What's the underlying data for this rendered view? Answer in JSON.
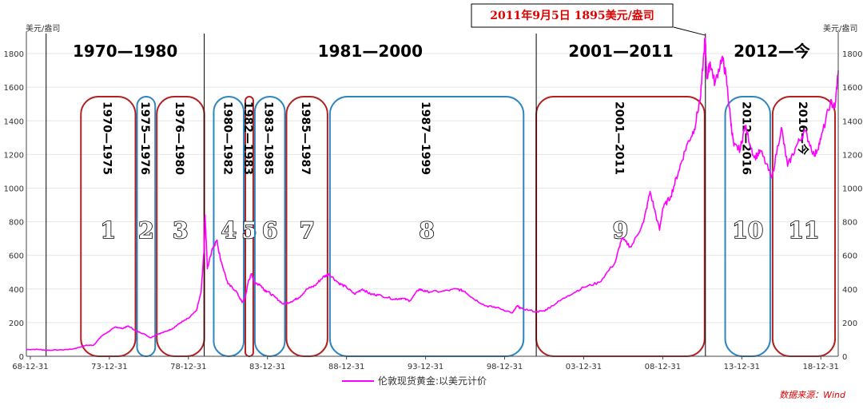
{
  "chart_data": {
    "type": "line",
    "unit_left": "美元/盎司",
    "unit_right": "美元/盎司",
    "ylim": [
      0,
      1900
    ],
    "y_ticks": [
      0,
      200,
      400,
      600,
      800,
      1000,
      1200,
      1400,
      1600,
      1800
    ],
    "xlim": [
      1968.75,
      2020.1
    ],
    "x_ticks": [
      {
        "label": "68-12-31",
        "x": 1969.0
      },
      {
        "label": "73-12-31",
        "x": 1974.0
      },
      {
        "label": "78-12-31",
        "x": 1979.0
      },
      {
        "label": "83-12-31",
        "x": 1984.0
      },
      {
        "label": "88-12-31",
        "x": 1989.0
      },
      {
        "label": "93-12-31",
        "x": 1994.0
      },
      {
        "label": "98-12-31",
        "x": 1999.0
      },
      {
        "label": "03-12-31",
        "x": 2004.0
      },
      {
        "label": "08-12-31",
        "x": 2009.0
      },
      {
        "label": "13-12-31",
        "x": 2014.0
      },
      {
        "label": "18-12-31",
        "x": 2019.0
      }
    ],
    "series": [
      {
        "name": "伦敦现货黄金:以美元计价",
        "color": "#ff00ff",
        "points": [
          [
            1968.75,
            40
          ],
          [
            1969.5,
            41
          ],
          [
            1970.0,
            36
          ],
          [
            1971.0,
            38
          ],
          [
            1971.7,
            43
          ],
          [
            1972.5,
            65
          ],
          [
            1973.0,
            66
          ],
          [
            1973.5,
            120
          ],
          [
            1974.0,
            150
          ],
          [
            1974.4,
            175
          ],
          [
            1974.8,
            165
          ],
          [
            1975.2,
            180
          ],
          [
            1975.7,
            150
          ],
          [
            1976.2,
            133
          ],
          [
            1976.6,
            110
          ],
          [
            1977.0,
            130
          ],
          [
            1977.5,
            145
          ],
          [
            1978.0,
            165
          ],
          [
            1978.5,
            200
          ],
          [
            1979.0,
            225
          ],
          [
            1979.5,
            270
          ],
          [
            1979.8,
            380
          ],
          [
            1980.0,
            650
          ],
          [
            1980.05,
            840
          ],
          [
            1980.2,
            520
          ],
          [
            1980.5,
            640
          ],
          [
            1980.8,
            690
          ],
          [
            1981.0,
            590
          ],
          [
            1981.5,
            430
          ],
          [
            1982.0,
            390
          ],
          [
            1982.4,
            320
          ],
          [
            1982.6,
            350
          ],
          [
            1982.8,
            450
          ],
          [
            1983.0,
            490
          ],
          [
            1983.2,
            430
          ],
          [
            1983.5,
            430
          ],
          [
            1983.8,
            395
          ],
          [
            1984.0,
            385
          ],
          [
            1984.5,
            350
          ],
          [
            1985.0,
            310
          ],
          [
            1985.5,
            325
          ],
          [
            1986.0,
            350
          ],
          [
            1986.5,
            400
          ],
          [
            1987.0,
            420
          ],
          [
            1987.5,
            470
          ],
          [
            1987.9,
            490
          ],
          [
            1988.5,
            435
          ],
          [
            1989.0,
            410
          ],
          [
            1989.5,
            370
          ],
          [
            1990.0,
            400
          ],
          [
            1990.5,
            370
          ],
          [
            1991.0,
            365
          ],
          [
            1992.0,
            340
          ],
          [
            1992.5,
            345
          ],
          [
            1993.0,
            330
          ],
          [
            1993.6,
            400
          ],
          [
            1994.0,
            385
          ],
          [
            1995.0,
            385
          ],
          [
            1996.0,
            400
          ],
          [
            1996.5,
            385
          ],
          [
            1997.0,
            345
          ],
          [
            1997.8,
            300
          ],
          [
            1998.5,
            290
          ],
          [
            1999.5,
            258
          ],
          [
            1999.8,
            300
          ],
          [
            2000.0,
            285
          ],
          [
            2001.0,
            265
          ],
          [
            2001.5,
            270
          ],
          [
            2002.0,
            300
          ],
          [
            2003.0,
            360
          ],
          [
            2004.0,
            410
          ],
          [
            2005.0,
            440
          ],
          [
            2006.0,
            560
          ],
          [
            2006.4,
            700
          ],
          [
            2007.0,
            650
          ],
          [
            2007.8,
            800
          ],
          [
            2008.2,
            980
          ],
          [
            2008.8,
            750
          ],
          [
            2009.0,
            880
          ],
          [
            2009.5,
            950
          ],
          [
            2010.0,
            1100
          ],
          [
            2010.5,
            1250
          ],
          [
            2011.0,
            1350
          ],
          [
            2011.4,
            1550
          ],
          [
            2011.68,
            1895
          ],
          [
            2011.8,
            1650
          ],
          [
            2012.0,
            1750
          ],
          [
            2012.3,
            1620
          ],
          [
            2012.75,
            1780
          ],
          [
            2013.0,
            1670
          ],
          [
            2013.3,
            1400
          ],
          [
            2013.5,
            1250
          ],
          [
            2013.9,
            1230
          ],
          [
            2014.2,
            1370
          ],
          [
            2014.8,
            1180
          ],
          [
            2015.2,
            1220
          ],
          [
            2015.9,
            1060
          ],
          [
            2016.5,
            1360
          ],
          [
            2016.9,
            1130
          ],
          [
            2017.5,
            1260
          ],
          [
            2018.0,
            1340
          ],
          [
            2018.6,
            1190
          ],
          [
            2019.0,
            1290
          ],
          [
            2019.6,
            1510
          ],
          [
            2019.9,
            1480
          ],
          [
            2020.1,
            1700
          ]
        ]
      }
    ],
    "eras": [
      {
        "label": "1970—1980",
        "from": 1970.0,
        "to": 1980.0
      },
      {
        "label": "1981—2000",
        "from": 1980.0,
        "to": 2001.0
      },
      {
        "label": "2001—2011",
        "from": 2001.0,
        "to": 2011.7
      },
      {
        "label": "2012—今",
        "from": 2011.7,
        "to": 2020.1
      }
    ],
    "phases": [
      {
        "num": "1",
        "label": "1970—1975",
        "from": 1972.2,
        "to": 1975.65,
        "color": "#b22222",
        "num_y": 750
      },
      {
        "num": "2",
        "label": "1975—1976",
        "from": 1975.75,
        "to": 1976.9,
        "color": "#2e86c1",
        "num_y": 750
      },
      {
        "num": "3",
        "label": "1976—1980",
        "from": 1977.0,
        "to": 1980.0,
        "color": "#b22222",
        "num_y": 750
      },
      {
        "num": "4",
        "label": "1980—1982",
        "from": 1980.6,
        "to": 1982.5,
        "color": "#2e86c1",
        "num_y": 750
      },
      {
        "num": "5",
        "label": "1982—1983",
        "from": 1982.6,
        "to": 1983.1,
        "color": "#b22222",
        "num_y": 750
      },
      {
        "num": "6",
        "label": "1983—1985",
        "from": 1983.2,
        "to": 1985.1,
        "color": "#2e86c1",
        "num_y": 750
      },
      {
        "num": "7",
        "label": "1985—1987",
        "from": 1985.2,
        "to": 1987.8,
        "color": "#b22222",
        "num_y": 750
      },
      {
        "num": "8",
        "label": "1987—1999",
        "from": 1987.95,
        "to": 2000.2,
        "color": "#2e86c1",
        "num_y": 750
      },
      {
        "num": "9",
        "label": "2001—2011",
        "from": 2001.0,
        "to": 2011.65,
        "color": "#b22222",
        "num_y": 750
      },
      {
        "num": "10",
        "label": "2012—2016",
        "from": 2012.95,
        "to": 2015.8,
        "color": "#2e86c1",
        "num_y": 750
      },
      {
        "num": "11",
        "label": "2016—今",
        "from": 2015.95,
        "to": 2019.9,
        "color": "#b22222",
        "num_y": 750
      }
    ],
    "callout": {
      "text": "2011年9月5日  1895美元/盎司",
      "x": 2011.68,
      "y": 1895
    }
  },
  "legend": {
    "label": "伦敦现货黄金:以美元计价"
  },
  "source": "数据来源：Wind"
}
